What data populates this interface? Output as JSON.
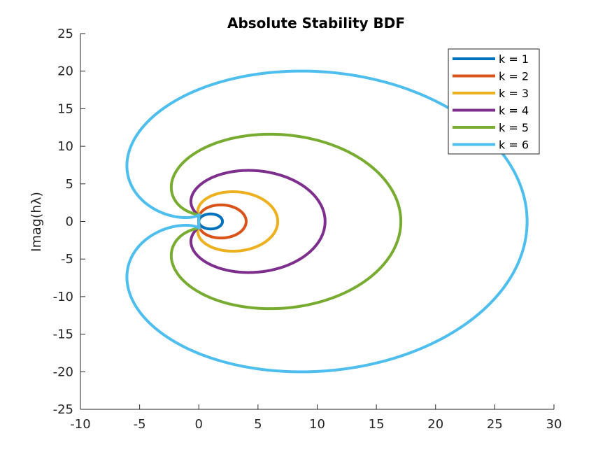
{
  "chart_data": {
    "type": "line",
    "title": "Absolute Stability BDF",
    "xlabel": "",
    "ylabel": "Imag(hλ)",
    "xlim": [
      -10,
      30
    ],
    "ylim": [
      -25,
      25
    ],
    "xticks": [
      -10,
      -5,
      0,
      5,
      10,
      15,
      20,
      25,
      30
    ],
    "yticks": [
      -25,
      -20,
      -15,
      -10,
      -5,
      0,
      5,
      10,
      15,
      20,
      25
    ],
    "grid": false,
    "legend_position": "top-right",
    "series": [
      {
        "name": "k = 1",
        "order": 1,
        "color": "#0072BD"
      },
      {
        "name": "k = 2",
        "order": 2,
        "color": "#D95319"
      },
      {
        "name": "k = 3",
        "order": 3,
        "color": "#EDB120"
      },
      {
        "name": "k = 4",
        "order": 4,
        "color": "#7E2F8E"
      },
      {
        "name": "k = 5",
        "order": 5,
        "color": "#77AC30"
      },
      {
        "name": "k = 6",
        "order": 6,
        "color": "#4DBEEE"
      }
    ]
  }
}
